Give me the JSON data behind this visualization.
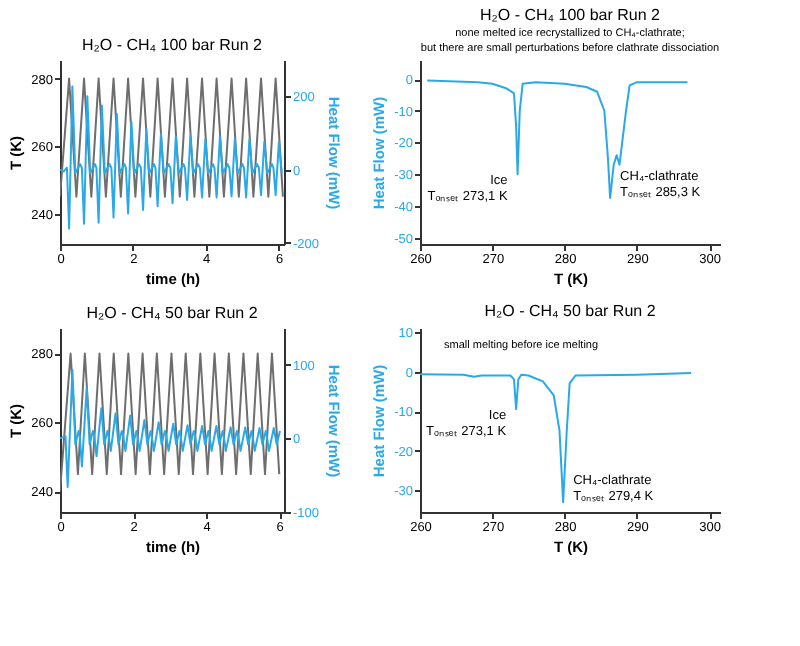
{
  "chart_data": [
    {
      "type": "line",
      "title": "H₂O - CH₄ 100 bar Run 2",
      "xlabel": "time (h)",
      "ylabel": "T (K)",
      "y2label": "Heat Flow (mW)",
      "xlim": [
        0,
        6.15
      ],
      "xticks": [
        0,
        2,
        4,
        6
      ],
      "ylim": [
        231,
        285.5
      ],
      "yticks": [
        240,
        260,
        280
      ],
      "y2lim": [
        -203,
        299
      ],
      "y2ticks": [
        -200,
        0,
        200
      ],
      "series": [
        {
          "color": "#6e6e6e",
          "x": [
            0,
            0.25,
            0.45,
            0.66,
            0.86,
            1.06,
            1.26,
            1.47,
            1.67,
            1.87,
            2.07,
            2.28,
            2.48,
            2.68,
            2.88,
            3.09,
            3.29,
            3.49,
            3.69,
            3.9,
            4.1,
            4.3,
            4.5,
            4.71,
            4.91,
            5.11,
            5.31,
            5.52,
            5.72,
            5.92,
            6.12
          ],
          "values": [
            245,
            280,
            245,
            280,
            245,
            280,
            245,
            280,
            245,
            280,
            245,
            280,
            245,
            280,
            245,
            280,
            245,
            280,
            245,
            280,
            245,
            280,
            245,
            280,
            245,
            280,
            245,
            280,
            245,
            280,
            245
          ]
        },
        {
          "color": "#29a9e8",
          "axis": "y2",
          "x": [
            0,
            0.1,
            0.19,
            0.25,
            0.34,
            0.42,
            0.55,
            0.6,
            0.66,
            0.75,
            0.83,
            0.96,
            1.0,
            1.06,
            1.15,
            1.23,
            1.36,
            1.41,
            1.47,
            1.56,
            1.64,
            1.77,
            1.81,
            1.87,
            1.96,
            2.04,
            2.17,
            2.22,
            2.28,
            2.37,
            2.45,
            2.58,
            2.62,
            2.68,
            2.77,
            2.85,
            2.98,
            3.03,
            3.09,
            3.18,
            3.26,
            3.39,
            3.43,
            3.49,
            3.58,
            3.66,
            3.79,
            3.84,
            3.9,
            3.99,
            4.07,
            4.2,
            4.24,
            4.3,
            4.39,
            4.47,
            4.6,
            4.65,
            4.71,
            4.8,
            4.88,
            5.01,
            5.05,
            5.11,
            5.2,
            5.28,
            5.41,
            5.46,
            5.52,
            5.61,
            5.69,
            5.82,
            5.86,
            5.92,
            6.01,
            6.09
          ],
          "values": [
            0,
            -5,
            5,
            -161,
            227,
            -10,
            15,
            5,
            -148,
            200,
            -10,
            15,
            5,
            -145,
            175,
            -10,
            15,
            5,
            -131,
            152,
            -10,
            15,
            5,
            -120,
            131,
            -10,
            15,
            5,
            -110,
            110,
            -10,
            15,
            5,
            -100,
            97,
            -10,
            15,
            5,
            -92,
            90,
            -10,
            15,
            5,
            -83,
            92,
            -10,
            15,
            5,
            -76,
            83,
            -10,
            15,
            5,
            -76,
            90,
            -10,
            15,
            5,
            -73,
            83,
            -10,
            15,
            5,
            -76,
            83,
            -10,
            15,
            5,
            -70,
            76,
            -10,
            15,
            5,
            -70,
            76,
            -10
          ]
        }
      ]
    },
    {
      "type": "line",
      "title": "H₂O - CH₄ 100 bar Run 2",
      "subtitle": "none melted ice recrystallized  to CH₄-clathrate;\nbut there are small perturbations before clathrate dissociation",
      "xlabel": "T (K)",
      "ylabel": "Heat Flow (mW)",
      "xlim": [
        260,
        301.5
      ],
      "xticks": [
        260,
        270,
        280,
        290,
        300
      ],
      "ylim": [
        -52,
        6
      ],
      "yticks": [
        0,
        -10,
        -20,
        -30,
        -40,
        -50
      ],
      "series": [
        {
          "color": "#29a9e8",
          "x": [
            261,
            268,
            270,
            272,
            273,
            273.3,
            273.5,
            273.8,
            274.2,
            276,
            280,
            283,
            284.5,
            285.5,
            286,
            286.3,
            286.8,
            287.2,
            287.6,
            288.5,
            289,
            290,
            297
          ],
          "values": [
            -0.5,
            -1,
            -1.5,
            -3,
            -4.5,
            -15,
            -30,
            -10,
            -1.5,
            -1,
            -1.5,
            -2.5,
            -4,
            -10,
            -25,
            -37.5,
            -27,
            -24,
            -27,
            -10,
            -2,
            -1,
            -1
          ]
        }
      ],
      "annotations": [
        {
          "text": "Ice",
          "x": 273.5,
          "y": -30
        },
        {
          "text": "Tₒₙₛₑₜ 273,1 K",
          "x": 273.5,
          "y": -30
        },
        {
          "text": "CH₄-clathrate",
          "x": 286.3,
          "y": -37.5
        },
        {
          "text": "Tₒₙₛₑₜ 285,3 K",
          "x": 286.3,
          "y": -37.5
        }
      ]
    },
    {
      "type": "line",
      "title": "H₂O - CH₄ 50 bar Run 2",
      "xlabel": "time (h)",
      "ylabel": "T (K)",
      "y2label": "Heat Flow (mW)",
      "xlim": [
        0,
        6.13
      ],
      "xticks": [
        0,
        2,
        4,
        6
      ],
      "ylim": [
        234,
        287.4
      ],
      "yticks": [
        240,
        260,
        280
      ],
      "y2lim": [
        -100,
        150
      ],
      "y2ticks": [
        -100,
        0,
        100
      ],
      "series": [
        {
          "color": "#6e6e6e",
          "x": [
            0,
            0.29,
            0.49,
            0.68,
            0.88,
            1.08,
            1.28,
            1.47,
            1.67,
            1.87,
            2.07,
            2.26,
            2.46,
            2.65,
            2.85,
            3.05,
            3.25,
            3.44,
            3.64,
            3.84,
            4.04,
            4.23,
            4.43,
            4.62,
            4.82,
            5.02,
            5.22,
            5.41,
            5.61,
            5.8,
            6.0
          ],
          "values": [
            240,
            280,
            245,
            280,
            245,
            280,
            245,
            280,
            245,
            280,
            245,
            280,
            245,
            280,
            245,
            280,
            245,
            280,
            245,
            280,
            245,
            280,
            245,
            280,
            245,
            280,
            245,
            280,
            245,
            280,
            245
          ]
        },
        {
          "color": "#29a9e8",
          "axis": "y2",
          "x": [
            0,
            0.15,
            0.21,
            0.34,
            0.42,
            0.51,
            0.54,
            0.6,
            0.73,
            0.81,
            0.9,
            0.94,
            1.0,
            1.13,
            1.21,
            1.3,
            1.33,
            1.39,
            1.52,
            1.6,
            1.69,
            1.73,
            1.79,
            1.92,
            2.0,
            2.09,
            2.12,
            2.18,
            2.31,
            2.39,
            2.48,
            2.51,
            2.57,
            2.7,
            2.78,
            2.87,
            2.91,
            2.97,
            3.1,
            3.18,
            3.27,
            3.3,
            3.36,
            3.49,
            3.57,
            3.66,
            3.7,
            3.76,
            3.89,
            3.97,
            4.06,
            4.09,
            4.15,
            4.28,
            4.36,
            4.45,
            4.48,
            4.54,
            4.67,
            4.75,
            4.84,
            4.88,
            4.94,
            5.07,
            5.15,
            5.24,
            5.27,
            5.33,
            5.46,
            5.54,
            5.63,
            5.66,
            5.72,
            5.85,
            5.93,
            6.02
          ],
          "values": [
            0,
            3,
            -66,
            93,
            -8,
            10,
            3,
            -38,
            69,
            -8,
            10,
            3,
            -24,
            41,
            -8,
            10,
            3,
            -17,
            34,
            -8,
            10,
            3,
            -17,
            31,
            -8,
            10,
            3,
            -17,
            25,
            -8,
            10,
            3,
            -17,
            22,
            -8,
            10,
            3,
            -17,
            20,
            -8,
            10,
            3,
            -17,
            18,
            -8,
            10,
            3,
            -17,
            17,
            -8,
            10,
            3,
            -17,
            17,
            -8,
            10,
            3,
            -17,
            15,
            -8,
            10,
            3,
            -17,
            15,
            -8,
            10,
            3,
            -17,
            14,
            -8,
            10,
            3,
            -17,
            14,
            -8,
            10
          ]
        }
      ]
    },
    {
      "type": "line",
      "title": "H₂O - CH₄ 50 bar Run 2",
      "xlabel": "T (K)",
      "ylabel": "Heat Flow (mW)",
      "xlim": [
        260,
        301.5
      ],
      "xticks": [
        260,
        270,
        280,
        290,
        300
      ],
      "ylim": [
        -35.5,
        11
      ],
      "yticks": [
        10,
        0,
        -10,
        -20,
        -30
      ],
      "series": [
        {
          "color": "#29a9e8",
          "x": [
            260,
            266,
            267.5,
            268.5,
            272.5,
            273,
            273.3,
            273.6,
            274,
            275,
            277,
            278.5,
            279.3,
            279.8,
            280.3,
            280.7,
            281.5,
            290,
            297.5
          ],
          "values": [
            -0.7,
            -0.8,
            -1.3,
            -1,
            -1,
            -2,
            -9.5,
            -2,
            -0.8,
            -1,
            -2.5,
            -6,
            -15,
            -33,
            -15,
            -3,
            -1,
            -0.8,
            -0.4
          ]
        }
      ],
      "annotations": [
        "small melting before ice melting",
        {
          "text": "Ice",
          "x": 273.3,
          "y": -9.5
        },
        {
          "text": "Tₒₙₛₑₜ 273,1 K",
          "x": 273.3,
          "y": -9.5
        },
        {
          "text": "CH₄-clathrate",
          "x": 279.8,
          "y": -33
        },
        {
          "text": "Tₒₙₛₑₜ 279,4 K",
          "x": 279.8,
          "y": -33
        }
      ]
    }
  ]
}
